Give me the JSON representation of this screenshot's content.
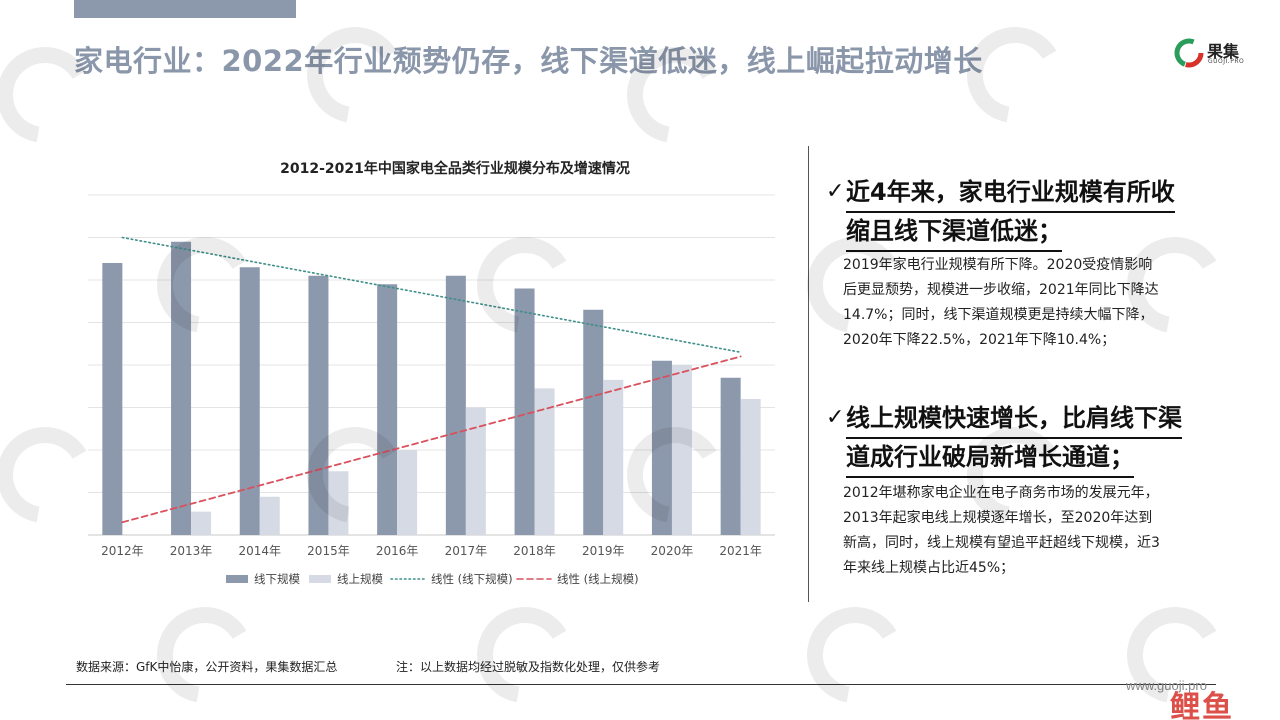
{
  "page": {
    "title": "家电行业：2022年行业颓势仍存，线下渠道低迷，线上崛起拉动增长"
  },
  "logo": {
    "name": "果集",
    "sub": "GUOJI.PRO"
  },
  "right_panel": {
    "bullets": [
      {
        "heading_lines": [
          "近4年来，家电行业规模有所收",
          "缩且线下渠道低迷；"
        ],
        "body_lines": [
          "2019年家电行业规模有所下降。2020受疫情影响",
          "后更显颓势，规模进一步收缩，2021年同比下降达",
          "14.7%；同时，线下渠道规模更是持续大幅下降，",
          "2020年下降22.5%，2021年下降10.4%；"
        ]
      },
      {
        "heading_lines": [
          "线上规模快速增长，比肩线下渠",
          "道成行业破局新增长通道；"
        ],
        "body_lines": [
          "2012年堪称家电企业在电子商务市场的发展元年，",
          "2013年起家电线上规模逐年增长，至2020年达到",
          "新高，同时，线上规模有望追平赶超线下规模，近3",
          "年来线上规模占比近45%；"
        ]
      }
    ]
  },
  "footer": {
    "source": "数据来源：GfK中怡康，公开资料，果集数据汇总",
    "note": "注：以上数据均经过脱敏及指数化处理，仅供参考",
    "site_url": "www.guoji.pro",
    "site_mark": "鲤鱼"
  },
  "chart_data": {
    "type": "bar",
    "title": "2012-2021年中国家电全品类行业规模分布及增速情况",
    "categories": [
      "2012年",
      "2013年",
      "2014年",
      "2015年",
      "2016年",
      "2017年",
      "2018年",
      "2019年",
      "2020年",
      "2021年"
    ],
    "series": [
      {
        "name": "线下规模",
        "values": [
          64,
          69,
          63,
          61,
          59,
          61,
          58,
          53,
          41,
          37
        ],
        "color": "#8c98ac"
      },
      {
        "name": "线上规模",
        "values": [
          0,
          5.5,
          9,
          15,
          20,
          30,
          34.5,
          36.5,
          40,
          32
        ],
        "color": "#d5dae4"
      }
    ],
    "trendlines": [
      {
        "name": "线性 (线下规模)",
        "start": 70,
        "end": 43,
        "color": "#3d8f88",
        "style": "dotted"
      },
      {
        "name": "线性 (线上规模)",
        "start": 3,
        "end": 42,
        "color": "#d9515d",
        "style": "dashed"
      }
    ],
    "ylim": [
      0,
      80
    ],
    "grid": true,
    "legend_position": "bottom"
  }
}
